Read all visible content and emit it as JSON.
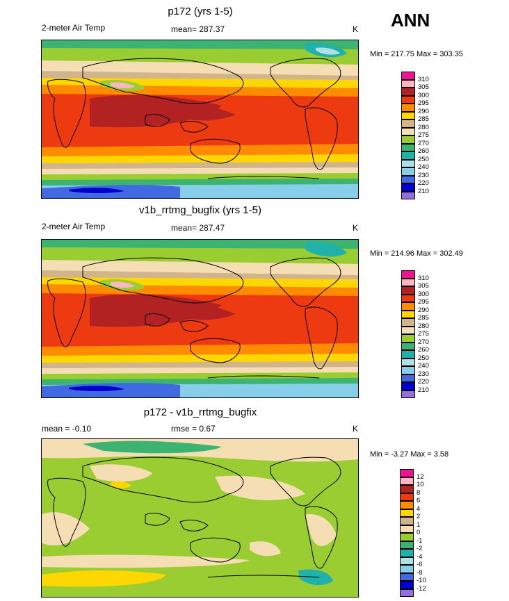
{
  "season": "ANN",
  "panels": [
    {
      "title": "p172 (yrs 1-5)",
      "left_label": "2-meter Air Temp",
      "center_label": "mean= 287.37",
      "right_label": "K",
      "minmax": "Min = 217.75 Max = 303.35",
      "colorbar": {
        "labels": [
          "310",
          "305",
          "300",
          "295",
          "290",
          "285",
          "280",
          "275",
          "270",
          "260",
          "250",
          "240",
          "230",
          "220",
          "210"
        ],
        "colors": [
          "#ee1493",
          "#ffb6c1",
          "#b22222",
          "#ee3a10",
          "#ff8c00",
          "#ffd700",
          "#d2b48c",
          "#f5deb3",
          "#9acd32",
          "#3cb371",
          "#20b2aa",
          "#b0e0e6",
          "#87ceeb",
          "#4169e1",
          "#0000cd",
          "#9370db"
        ]
      }
    },
    {
      "title": "v1b_rrtmg_bugfix (yrs 1-5)",
      "left_label": "2-meter Air Temp",
      "center_label": "mean= 287.47",
      "right_label": "K",
      "minmax": "Min = 214.96 Max = 302.49",
      "colorbar": {
        "labels": [
          "310",
          "305",
          "300",
          "295",
          "290",
          "285",
          "280",
          "275",
          "270",
          "260",
          "250",
          "240",
          "230",
          "220",
          "210"
        ],
        "colors": [
          "#ee1493",
          "#ffb6c1",
          "#b22222",
          "#ee3a10",
          "#ff8c00",
          "#ffd700",
          "#d2b48c",
          "#f5deb3",
          "#9acd32",
          "#3cb371",
          "#20b2aa",
          "#b0e0e6",
          "#87ceeb",
          "#4169e1",
          "#0000cd",
          "#9370db"
        ]
      }
    },
    {
      "title": "p172 - v1b_rrtmg_bugfix",
      "left_label": "mean =  -0.10",
      "center_label": "rmse =   0.67",
      "right_label": "K",
      "minmax": "Min =  -3.27 Max =   3.58",
      "colorbar": {
        "labels": [
          "12",
          "10",
          "8",
          "6",
          "4",
          "2",
          "1",
          "0",
          "-1",
          "-2",
          "-4",
          "-6",
          "-8",
          "-10",
          "-12"
        ],
        "colors": [
          "#ee1493",
          "#ffb6c1",
          "#b22222",
          "#ee3a10",
          "#ff8c00",
          "#ffd700",
          "#d2b48c",
          "#f5deb3",
          "#9acd32",
          "#3cb371",
          "#20b2aa",
          "#b0e0e6",
          "#87ceeb",
          "#4169e1",
          "#0000cd",
          "#9370db"
        ]
      }
    }
  ]
}
